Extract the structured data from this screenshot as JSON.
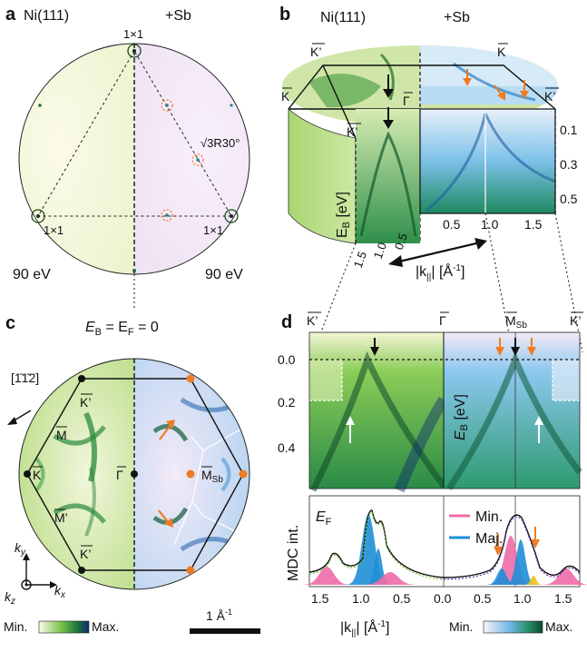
{
  "figure": {
    "panel_a": {
      "letter": "a",
      "left_title": "Ni(111)",
      "right_title": "+Sb",
      "spot_top": "1×1",
      "spot_left": "1×1",
      "spot_right": "1×1",
      "sqrt_label": "√3R30°",
      "energy_left": "90 eV",
      "energy_right": "90 eV"
    },
    "panel_b": {
      "letter": "b",
      "left_title": "Ni(111)",
      "right_title": "+Sb",
      "k_top_left": "K’",
      "k_top_right": "K",
      "k_left": "K",
      "k_right": "K’",
      "gamma": "Γ",
      "k_front": "K’",
      "eb_label": "E",
      "eb_sub": "B",
      "eb_unit": " [eV]",
      "eb_ticks": [
        "0.1",
        "0.3",
        "0.5"
      ],
      "k_ticks_bottom": [
        "0.5",
        "1.0",
        "1.5"
      ],
      "k_ticks_side": [
        "1.5",
        "1.0",
        "0.5"
      ],
      "k_axis": "|k",
      "k_axis_sub": "||",
      "k_axis_unit": "| [Å",
      "k_axis_exp": "-1",
      "k_axis_close": "]"
    },
    "panel_c": {
      "letter": "c",
      "title_e": "E",
      "title_sub": "B",
      "title_rest": " = E",
      "title_sub2": "F",
      "title_end": " = 0",
      "direction": "[1̄1̄2]",
      "labels": {
        "k_top": "K’",
        "m_left": "M",
        "k_left": "K",
        "gamma": "Γ",
        "m_prime": "M’",
        "k_bottom": "K’",
        "m_sb": "M",
        "m_sb_sub": "Sb"
      },
      "axis_ky": "k",
      "axis_ky_sub": "y",
      "axis_kx": "k",
      "axis_kx_sub": "x",
      "axis_kz": "k",
      "axis_kz_sub": "z",
      "colorbar_min": "Min.",
      "colorbar_max": "Max.",
      "scale_label": "1 Å",
      "scale_exp": "-1"
    },
    "panel_d": {
      "letter": "d",
      "top_labels": {
        "k_left": "K’",
        "gamma": "Γ",
        "m_sb": "M",
        "m_sb_sub": "Sb",
        "k_right": "K’"
      },
      "eb_ticks": [
        "0.0",
        "0.2",
        "0.4"
      ],
      "eb_label": "E",
      "eb_sub": "B",
      "eb_unit": " [eV]",
      "mdc_label": "MDC int.",
      "ef_label": "E",
      "ef_sub": "F",
      "legend_min": "Min.",
      "legend_maj": "Maj.",
      "k_ticks": [
        "1.5",
        "1.0",
        "0.5",
        "0.0",
        "0.5",
        "1.0",
        "1.5"
      ],
      "k_axis": "|k",
      "k_axis_sub": "||",
      "k_axis_unit": "| [Å",
      "k_axis_exp": "-1",
      "k_axis_close": "]",
      "colorbar_min": "Min.",
      "colorbar_max": "Max."
    },
    "colors": {
      "green_dark": "#0e5a2a",
      "green_mid": "#3c9a3a",
      "green_light": "#cfe8a6",
      "blue_dark": "#0b2a66",
      "blue_mid": "#3b8fd6",
      "blue_light": "#d6e8f8",
      "pink": "#f06aa8",
      "blue_peak": "#1f8fd6",
      "orange": "#f07b22",
      "yellow": "#f0c020",
      "violet_fit": "#6a3fb8"
    }
  }
}
